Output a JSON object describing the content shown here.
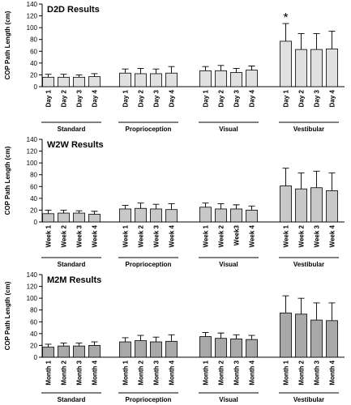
{
  "chart_data": [
    {
      "type": "bar",
      "title": "D2D Results",
      "ylabel": "COP Path Length (cm)",
      "color": "#e0e0e0",
      "annotation": "*",
      "ylim": [
        0,
        140
      ],
      "yticks": [
        0,
        20,
        40,
        60,
        80,
        100,
        120,
        140
      ],
      "groups": [
        {
          "name": "Standard",
          "categories": [
            "Day 1",
            "Day 2",
            "Day 3",
            "Day 4"
          ],
          "values": [
            16,
            16,
            16,
            17
          ],
          "errors": [
            5,
            5,
            4,
            5
          ]
        },
        {
          "name": "Proprioception",
          "categories": [
            "Day 1",
            "Day 2",
            "Day 3",
            "Day 4"
          ],
          "values": [
            23,
            22,
            22,
            23
          ],
          "errors": [
            7,
            9,
            8,
            11
          ]
        },
        {
          "name": "Visual",
          "categories": [
            "Day 1",
            "Day 2",
            "Day 3",
            "Day 4"
          ],
          "values": [
            27,
            27,
            24,
            28
          ],
          "errors": [
            7,
            9,
            7,
            7
          ]
        },
        {
          "name": "Vestibular",
          "categories": [
            "Day 1",
            "Day 2",
            "Day 3",
            "Day 4"
          ],
          "values": [
            77,
            63,
            63,
            64
          ],
          "errors": [
            30,
            27,
            27,
            30
          ]
        }
      ]
    },
    {
      "type": "bar",
      "title": "W2W Results",
      "ylabel": "COP Path Length (cm)",
      "color": "#c8c8c8",
      "ylim": [
        0,
        140
      ],
      "yticks": [
        0,
        20,
        40,
        60,
        80,
        100,
        120,
        140
      ],
      "groups": [
        {
          "name": "Standard",
          "categories": [
            "Week 1",
            "Week 2",
            "Week 3",
            "Week 4"
          ],
          "values": [
            14,
            15,
            15,
            13
          ],
          "errors": [
            6,
            5,
            4,
            5
          ]
        },
        {
          "name": "Proprioception",
          "categories": [
            "Week 1",
            "Week 2",
            "Week 3",
            "Week 4"
          ],
          "values": [
            22,
            23,
            22,
            21
          ],
          "errors": [
            6,
            9,
            8,
            10
          ]
        },
        {
          "name": "Visual",
          "categories": [
            "Week 1",
            "Week 2",
            "Week3",
            "Week 4"
          ],
          "values": [
            25,
            22,
            22,
            20
          ],
          "errors": [
            7,
            9,
            7,
            7
          ]
        },
        {
          "name": "Vestibular",
          "categories": [
            "Week 1",
            "Week 2",
            "Week 3",
            "Week 4"
          ],
          "values": [
            61,
            56,
            58,
            53
          ],
          "errors": [
            30,
            27,
            28,
            30
          ]
        }
      ]
    },
    {
      "type": "bar",
      "title": "M2M Results",
      "ylabel": "COP Path Length (cm)",
      "color": "#a8a8a8",
      "ylim": [
        0,
        140
      ],
      "yticks": [
        0,
        20,
        40,
        60,
        80,
        100,
        120,
        140
      ],
      "groups": [
        {
          "name": "Standard",
          "categories": [
            "Month 1",
            "Month 2",
            "Month 3",
            "Month 4"
          ],
          "values": [
            17,
            19,
            19,
            20
          ],
          "errors": [
            5,
            5,
            5,
            6
          ]
        },
        {
          "name": "Proprioception",
          "categories": [
            "Month 1",
            "Month 2",
            "Month 3",
            "Month 4"
          ],
          "values": [
            26,
            28,
            26,
            27
          ],
          "errors": [
            7,
            9,
            8,
            11
          ]
        },
        {
          "name": "Visual",
          "categories": [
            "Month 1",
            "Month 2",
            "Month 3",
            "Month 4"
          ],
          "values": [
            35,
            32,
            31,
            30
          ],
          "errors": [
            7,
            9,
            7,
            7
          ]
        },
        {
          "name": "Vestibular",
          "categories": [
            "Month 1",
            "Month 2",
            "Month 3",
            "Month 4"
          ],
          "values": [
            75,
            73,
            63,
            62
          ],
          "errors": [
            29,
            27,
            29,
            30
          ]
        }
      ]
    }
  ]
}
